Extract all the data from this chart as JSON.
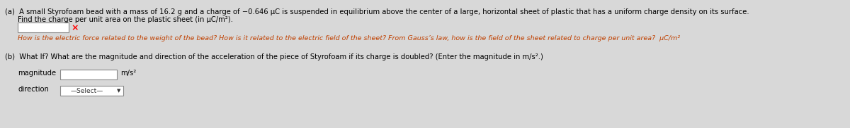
{
  "bg_color": "#d8d8d8",
  "fig_bg_color": "#d8d8d8",
  "title_a": "(a)  A small Styrofoam bead with a mass of 16.2 g and a charge of −0.646 μC is suspended in equilibrium above the center of a large, horizontal sheet of plastic that has a uniform charge density on its surface.",
  "line2": "Find the charge per unit area on the plastic sheet (in μC/m²).",
  "hint_text": "How is the electric force related to the weight of the bead? How is it related to the electric field of the sheet? From Gauss’s law, how is the field of the sheet related to charge per unit area?  μC/m²",
  "title_b": "(b)  What If? What are the magnitude and direction of the acceleration of the piece of Styrofoam if its charge is doubled? (Enter the magnitude in m/s².)",
  "magnitude_label": "magnitude",
  "direction_label": "direction",
  "unit_mag": "m/s²",
  "select_text": "—Select—",
  "text_color": "#000000",
  "hint_color": "#c04000",
  "input_box_edge": "#888888"
}
